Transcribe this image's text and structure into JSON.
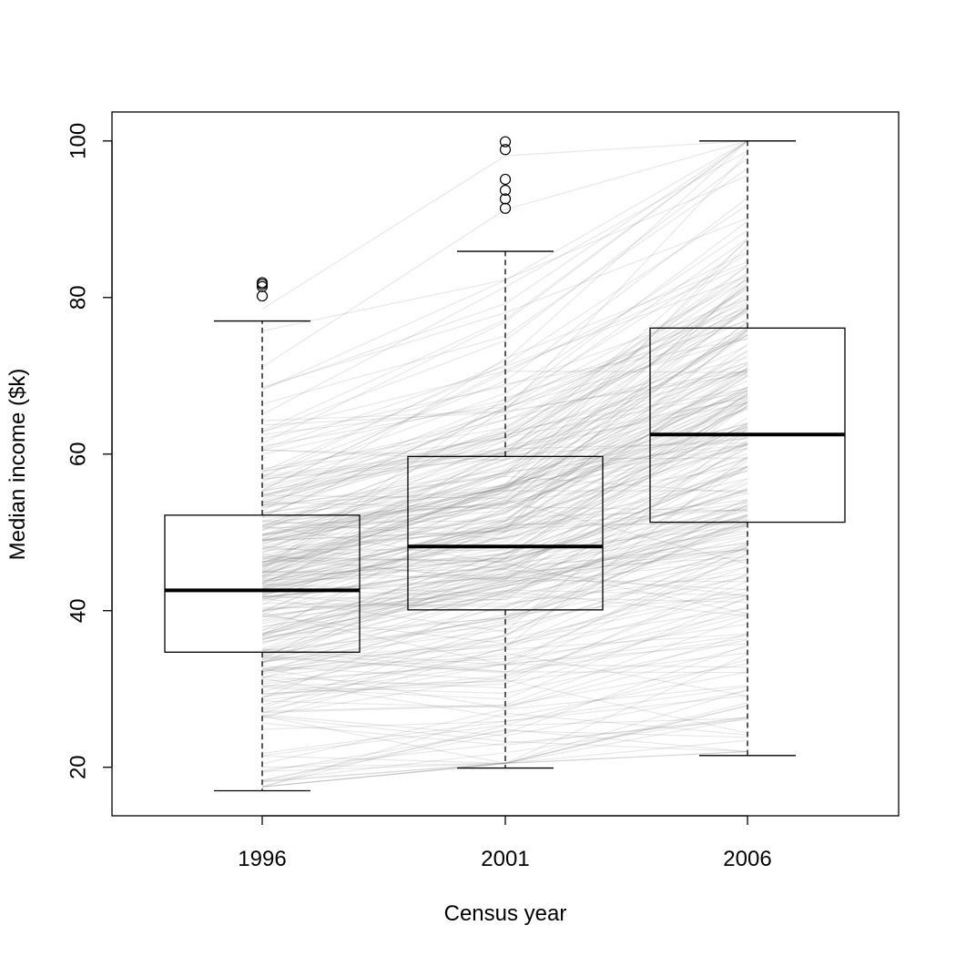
{
  "chart_data": {
    "type": "boxplot",
    "xlabel": "Census year",
    "ylabel": "Median income ($k)",
    "categories": [
      "1996",
      "2001",
      "2006"
    ],
    "y_ticks": [
      20,
      40,
      60,
      80,
      100
    ],
    "ylim": [
      13.8,
      103.7
    ],
    "boxes": [
      {
        "category": "1996",
        "whisker_low": 17.0,
        "q1": 34.7,
        "median": 42.6,
        "q3": 52.2,
        "whisker_high": 77.0,
        "outliers": [
          80.2,
          81.4,
          81.7,
          81.9
        ]
      },
      {
        "category": "2001",
        "whisker_low": 19.9,
        "q1": 40.1,
        "median": 48.2,
        "q3": 59.7,
        "whisker_high": 85.9,
        "outliers": [
          91.4,
          92.6,
          93.7,
          95.1,
          98.9,
          99.9
        ]
      },
      {
        "category": "2006",
        "whisker_low": 21.5,
        "q1": 51.3,
        "median": 62.5,
        "q3": 76.1,
        "whisker_high": 100.0,
        "outliers": []
      }
    ],
    "trajectories_overlay": "semi-transparent grey lines connecting each area's median income across the three census years",
    "box_color": "#000000",
    "line_color": "#808080",
    "grid": false
  }
}
